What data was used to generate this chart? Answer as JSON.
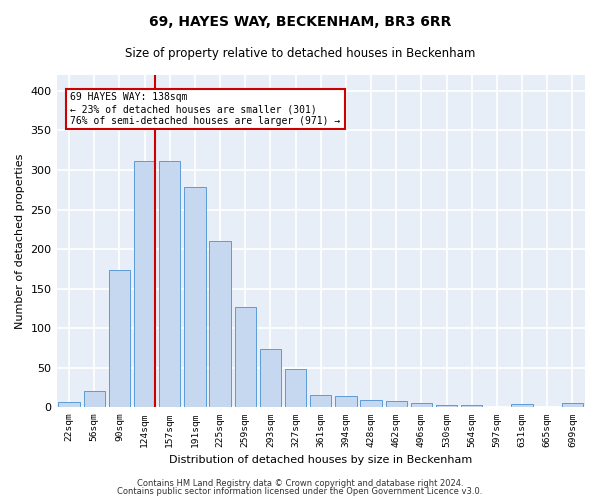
{
  "title": "69, HAYES WAY, BECKENHAM, BR3 6RR",
  "subtitle": "Size of property relative to detached houses in Beckenham",
  "xlabel": "Distribution of detached houses by size in Beckenham",
  "ylabel": "Number of detached properties",
  "bar_color": "#c5d8f0",
  "bar_edge_color": "#5b9bd5",
  "bg_color": "#e8eef8",
  "grid_color": "#ffffff",
  "categories": [
    "22sqm",
    "56sqm",
    "90sqm",
    "124sqm",
    "157sqm",
    "191sqm",
    "225sqm",
    "259sqm",
    "293sqm",
    "327sqm",
    "361sqm",
    "394sqm",
    "428sqm",
    "462sqm",
    "496sqm",
    "530sqm",
    "564sqm",
    "597sqm",
    "631sqm",
    "665sqm",
    "699sqm"
  ],
  "values": [
    7,
    21,
    173,
    311,
    311,
    278,
    210,
    127,
    74,
    49,
    15,
    14,
    9,
    8,
    5,
    3,
    3,
    0,
    4,
    0,
    5
  ],
  "ylim": [
    0,
    420
  ],
  "yticks": [
    0,
    50,
    100,
    150,
    200,
    250,
    300,
    350,
    400
  ],
  "red_line_index": 3,
  "annotation_text1": "69 HAYES WAY: 138sqm",
  "annotation_text2": "← 23% of detached houses are smaller (301)",
  "annotation_text3": "76% of semi-detached houses are larger (971) →",
  "annotation_box_color": "#ffffff",
  "annotation_border_color": "#cc0000",
  "red_line_color": "#cc0000",
  "footer1": "Contains HM Land Registry data © Crown copyright and database right 2024.",
  "footer2": "Contains public sector information licensed under the Open Government Licence v3.0."
}
